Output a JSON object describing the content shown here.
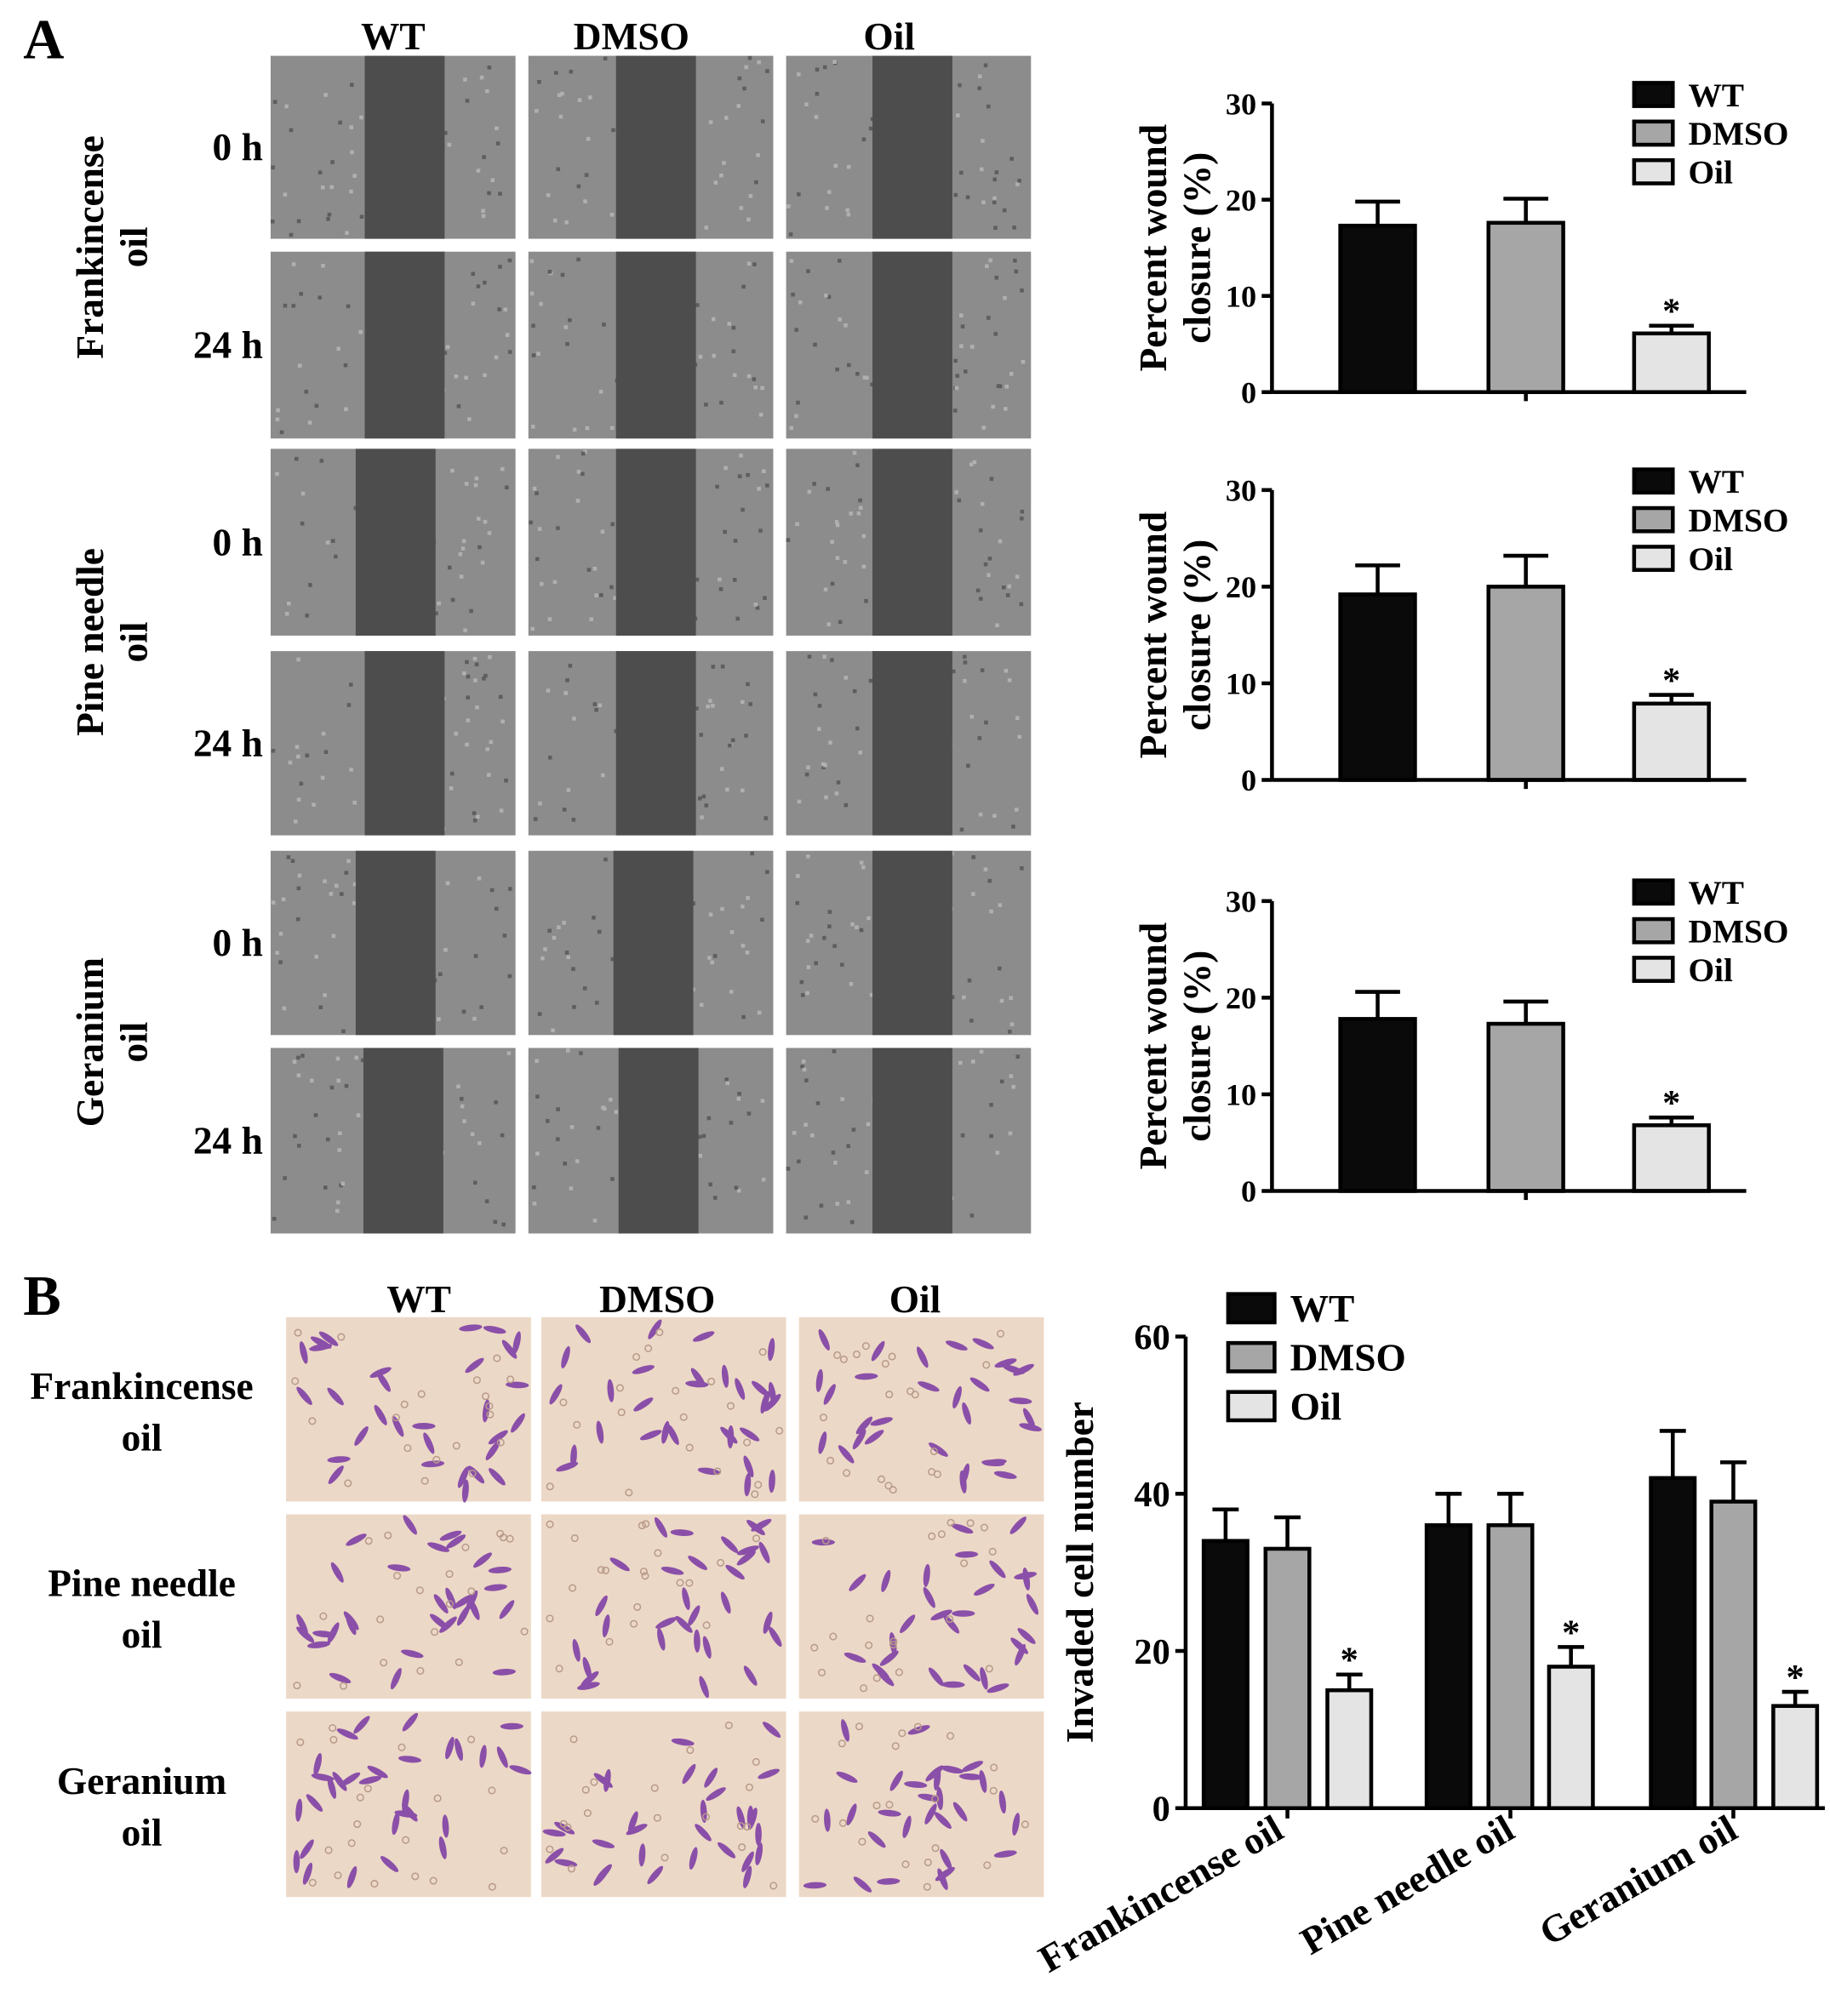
{
  "panels": {
    "A": {
      "label": "A",
      "columns": [
        "WT",
        "DMSO",
        "Oil"
      ],
      "groups": [
        {
          "name": "Frankincense oil",
          "name_lines": [
            "Frankincense",
            "oil"
          ],
          "rows": [
            "0 h",
            "24 h"
          ]
        },
        {
          "name": "Pine needle oil",
          "name_lines": [
            "Pine needle",
            "oil"
          ],
          "rows": [
            "0 h",
            "24 h"
          ]
        },
        {
          "name": "Geranium oil",
          "name_lines": [
            "Geranium",
            "oil"
          ],
          "rows": [
            "0 h",
            "24 h"
          ]
        }
      ]
    },
    "B": {
      "label": "B",
      "columns": [
        "WT",
        "DMSO",
        "Oil"
      ],
      "rows": [
        {
          "name_lines": [
            "Frankincense",
            "oil"
          ]
        },
        {
          "name_lines": [
            "Pine needle",
            "oil"
          ]
        },
        {
          "name_lines": [
            "Geranium",
            "oil"
          ]
        }
      ]
    }
  },
  "colors": {
    "WT": "#0a0a0a",
    "DMSO": "#a6a6a6",
    "Oil": "#e4e4e4",
    "wound_bg": "#8c8c8c",
    "wound_gap": "#4d4d4d",
    "invasion_bg": "#ecd8c6",
    "cell_stain": "#8a4fa8"
  },
  "chart_data": [
    {
      "type": "bar",
      "panel": "A",
      "group": "Frankincense oil",
      "ylabel": "Percent wound closure (%)",
      "ylim": [
        0,
        30
      ],
      "yticks": [
        0,
        10,
        20,
        30
      ],
      "legend": [
        "WT",
        "DMSO",
        "Oil"
      ],
      "legend_position": "top-right",
      "categories": [
        "WT",
        "DMSO",
        "Oil"
      ],
      "values": [
        17.3,
        17.6,
        6.1
      ],
      "errors": [
        2.5,
        2.5,
        0.8
      ],
      "annotations": [
        "",
        "",
        "*"
      ]
    },
    {
      "type": "bar",
      "panel": "A",
      "group": "Pine needle oil",
      "ylabel": "Percent wound closure (%)",
      "ylim": [
        0,
        30
      ],
      "yticks": [
        0,
        10,
        20,
        30
      ],
      "legend": [
        "WT",
        "DMSO",
        "Oil"
      ],
      "legend_position": "top-right",
      "categories": [
        "WT",
        "DMSO",
        "Oil"
      ],
      "values": [
        19.2,
        20.0,
        7.9
      ],
      "errors": [
        3.0,
        3.2,
        0.9
      ],
      "annotations": [
        "",
        "",
        "*"
      ]
    },
    {
      "type": "bar",
      "panel": "A",
      "group": "Geranium oil",
      "ylabel": "Percent wound closure (%)",
      "ylim": [
        0,
        30
      ],
      "yticks": [
        0,
        10,
        20,
        30
      ],
      "legend": [
        "WT",
        "DMSO",
        "Oil"
      ],
      "legend_position": "top-right",
      "categories": [
        "WT",
        "DMSO",
        "Oil"
      ],
      "values": [
        17.8,
        17.3,
        6.8
      ],
      "errors": [
        2.8,
        2.3,
        0.8
      ],
      "annotations": [
        "",
        "",
        "*"
      ]
    },
    {
      "type": "bar",
      "panel": "B",
      "ylabel": "Invaded cell number",
      "ylim": [
        0,
        60
      ],
      "yticks": [
        0,
        20,
        40,
        60
      ],
      "legend": [
        "WT",
        "DMSO",
        "Oil"
      ],
      "legend_position": "top-left",
      "categories": [
        "Frankincense oil",
        "Pine needle oil",
        "Geranium oil"
      ],
      "series": [
        {
          "name": "WT",
          "values": [
            34,
            36,
            42
          ],
          "errors": [
            4,
            4,
            6
          ]
        },
        {
          "name": "DMSO",
          "values": [
            33,
            36,
            39
          ],
          "errors": [
            4,
            4,
            5
          ]
        },
        {
          "name": "Oil",
          "values": [
            15,
            18,
            13
          ],
          "errors": [
            2,
            2.5,
            1.8
          ],
          "annotations": [
            "*",
            "*",
            "*"
          ]
        }
      ]
    }
  ]
}
